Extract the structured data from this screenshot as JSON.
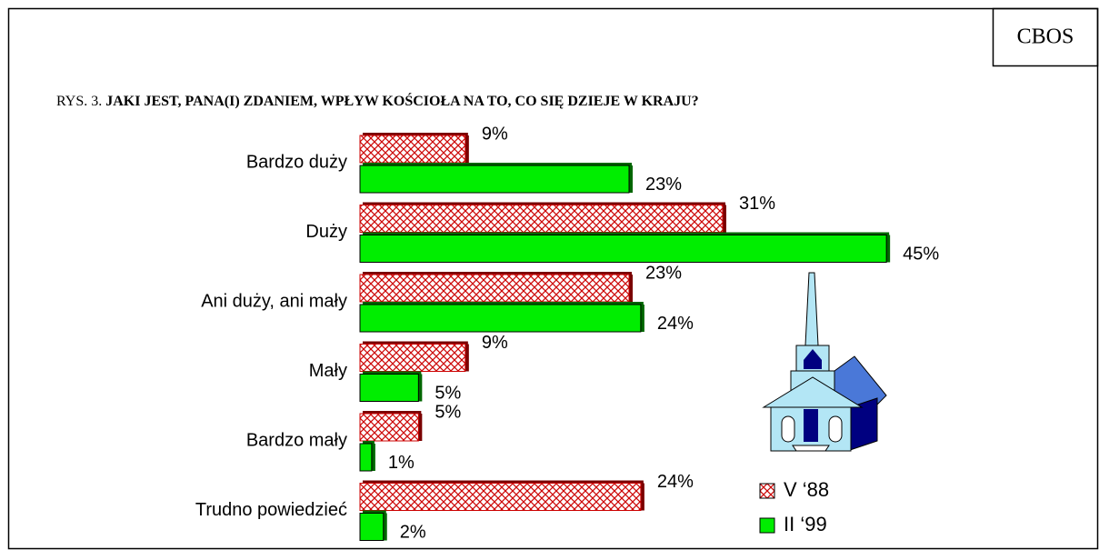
{
  "chart_data": {
    "type": "bar",
    "orientation": "horizontal",
    "source": "CBOS",
    "figure_label": "RYS. 3.",
    "title": "JAKI JEST, PANA(I) ZDANIEM, WPŁYW KOŚCIOŁA NA TO, CO SIĘ DZIEJE W KRAJU?",
    "categories": [
      "Bardzo duży",
      "Duży",
      "Ani duży, ani mały",
      "Mały",
      "Bardzo mały",
      "Trudno powiedzieć"
    ],
    "series": [
      {
        "name": "V ‘88",
        "color": "#cc0000",
        "pattern": "crosshatch",
        "values": [
          9,
          31,
          23,
          9,
          5,
          24
        ],
        "value_labels": [
          "9%",
          "31%",
          "23%",
          "9%",
          "5%",
          "24%"
        ]
      },
      {
        "name": "II ‘99",
        "color": "#00ee00",
        "values": [
          23,
          45,
          24,
          5,
          1,
          2
        ],
        "value_labels": [
          "23%",
          "45%",
          "24%",
          "5%",
          "1%",
          "2%"
        ]
      }
    ]
  }
}
